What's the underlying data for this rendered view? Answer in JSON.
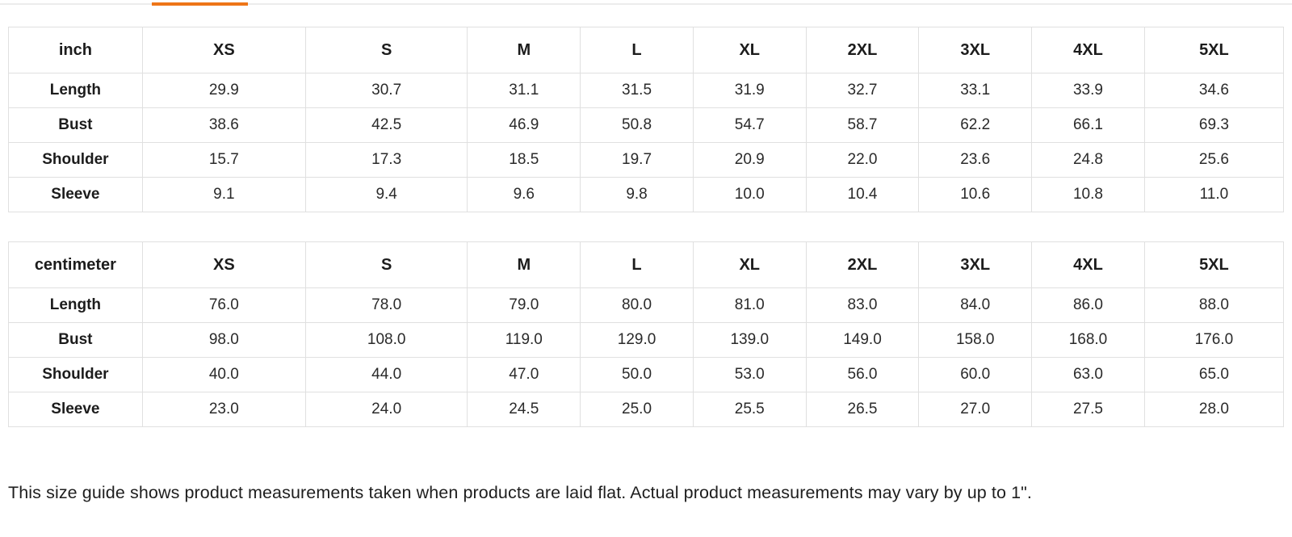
{
  "tab_bar": {
    "active_indicator_color": "#ee7518"
  },
  "tables": [
    {
      "unit_label": "inch",
      "columns": [
        "XS",
        "S",
        "M",
        "L",
        "XL",
        "2XL",
        "3XL",
        "4XL",
        "5XL"
      ],
      "rows": [
        {
          "label": "Length",
          "values": [
            "29.9",
            "30.7",
            "31.1",
            "31.5",
            "31.9",
            "32.7",
            "33.1",
            "33.9",
            "34.6"
          ]
        },
        {
          "label": "Bust",
          "values": [
            "38.6",
            "42.5",
            "46.9",
            "50.8",
            "54.7",
            "58.7",
            "62.2",
            "66.1",
            "69.3"
          ]
        },
        {
          "label": "Shoulder",
          "values": [
            "15.7",
            "17.3",
            "18.5",
            "19.7",
            "20.9",
            "22.0",
            "23.6",
            "24.8",
            "25.6"
          ]
        },
        {
          "label": "Sleeve",
          "values": [
            "9.1",
            "9.4",
            "9.6",
            "9.8",
            "10.0",
            "10.4",
            "10.6",
            "10.8",
            "11.0"
          ]
        }
      ]
    },
    {
      "unit_label": "centimeter",
      "columns": [
        "XS",
        "S",
        "M",
        "L",
        "XL",
        "2XL",
        "3XL",
        "4XL",
        "5XL"
      ],
      "rows": [
        {
          "label": "Length",
          "values": [
            "76.0",
            "78.0",
            "79.0",
            "80.0",
            "81.0",
            "83.0",
            "84.0",
            "86.0",
            "88.0"
          ]
        },
        {
          "label": "Bust",
          "values": [
            "98.0",
            "108.0",
            "119.0",
            "129.0",
            "139.0",
            "149.0",
            "158.0",
            "168.0",
            "176.0"
          ]
        },
        {
          "label": "Shoulder",
          "values": [
            "40.0",
            "44.0",
            "47.0",
            "50.0",
            "53.0",
            "56.0",
            "60.0",
            "63.0",
            "65.0"
          ]
        },
        {
          "label": "Sleeve",
          "values": [
            "23.0",
            "24.0",
            "24.5",
            "25.0",
            "25.5",
            "26.5",
            "27.0",
            "27.5",
            "28.0"
          ]
        }
      ]
    }
  ],
  "note": "This size guide shows product measurements taken when products are laid flat. Actual product measurements may vary by up to 1\"."
}
